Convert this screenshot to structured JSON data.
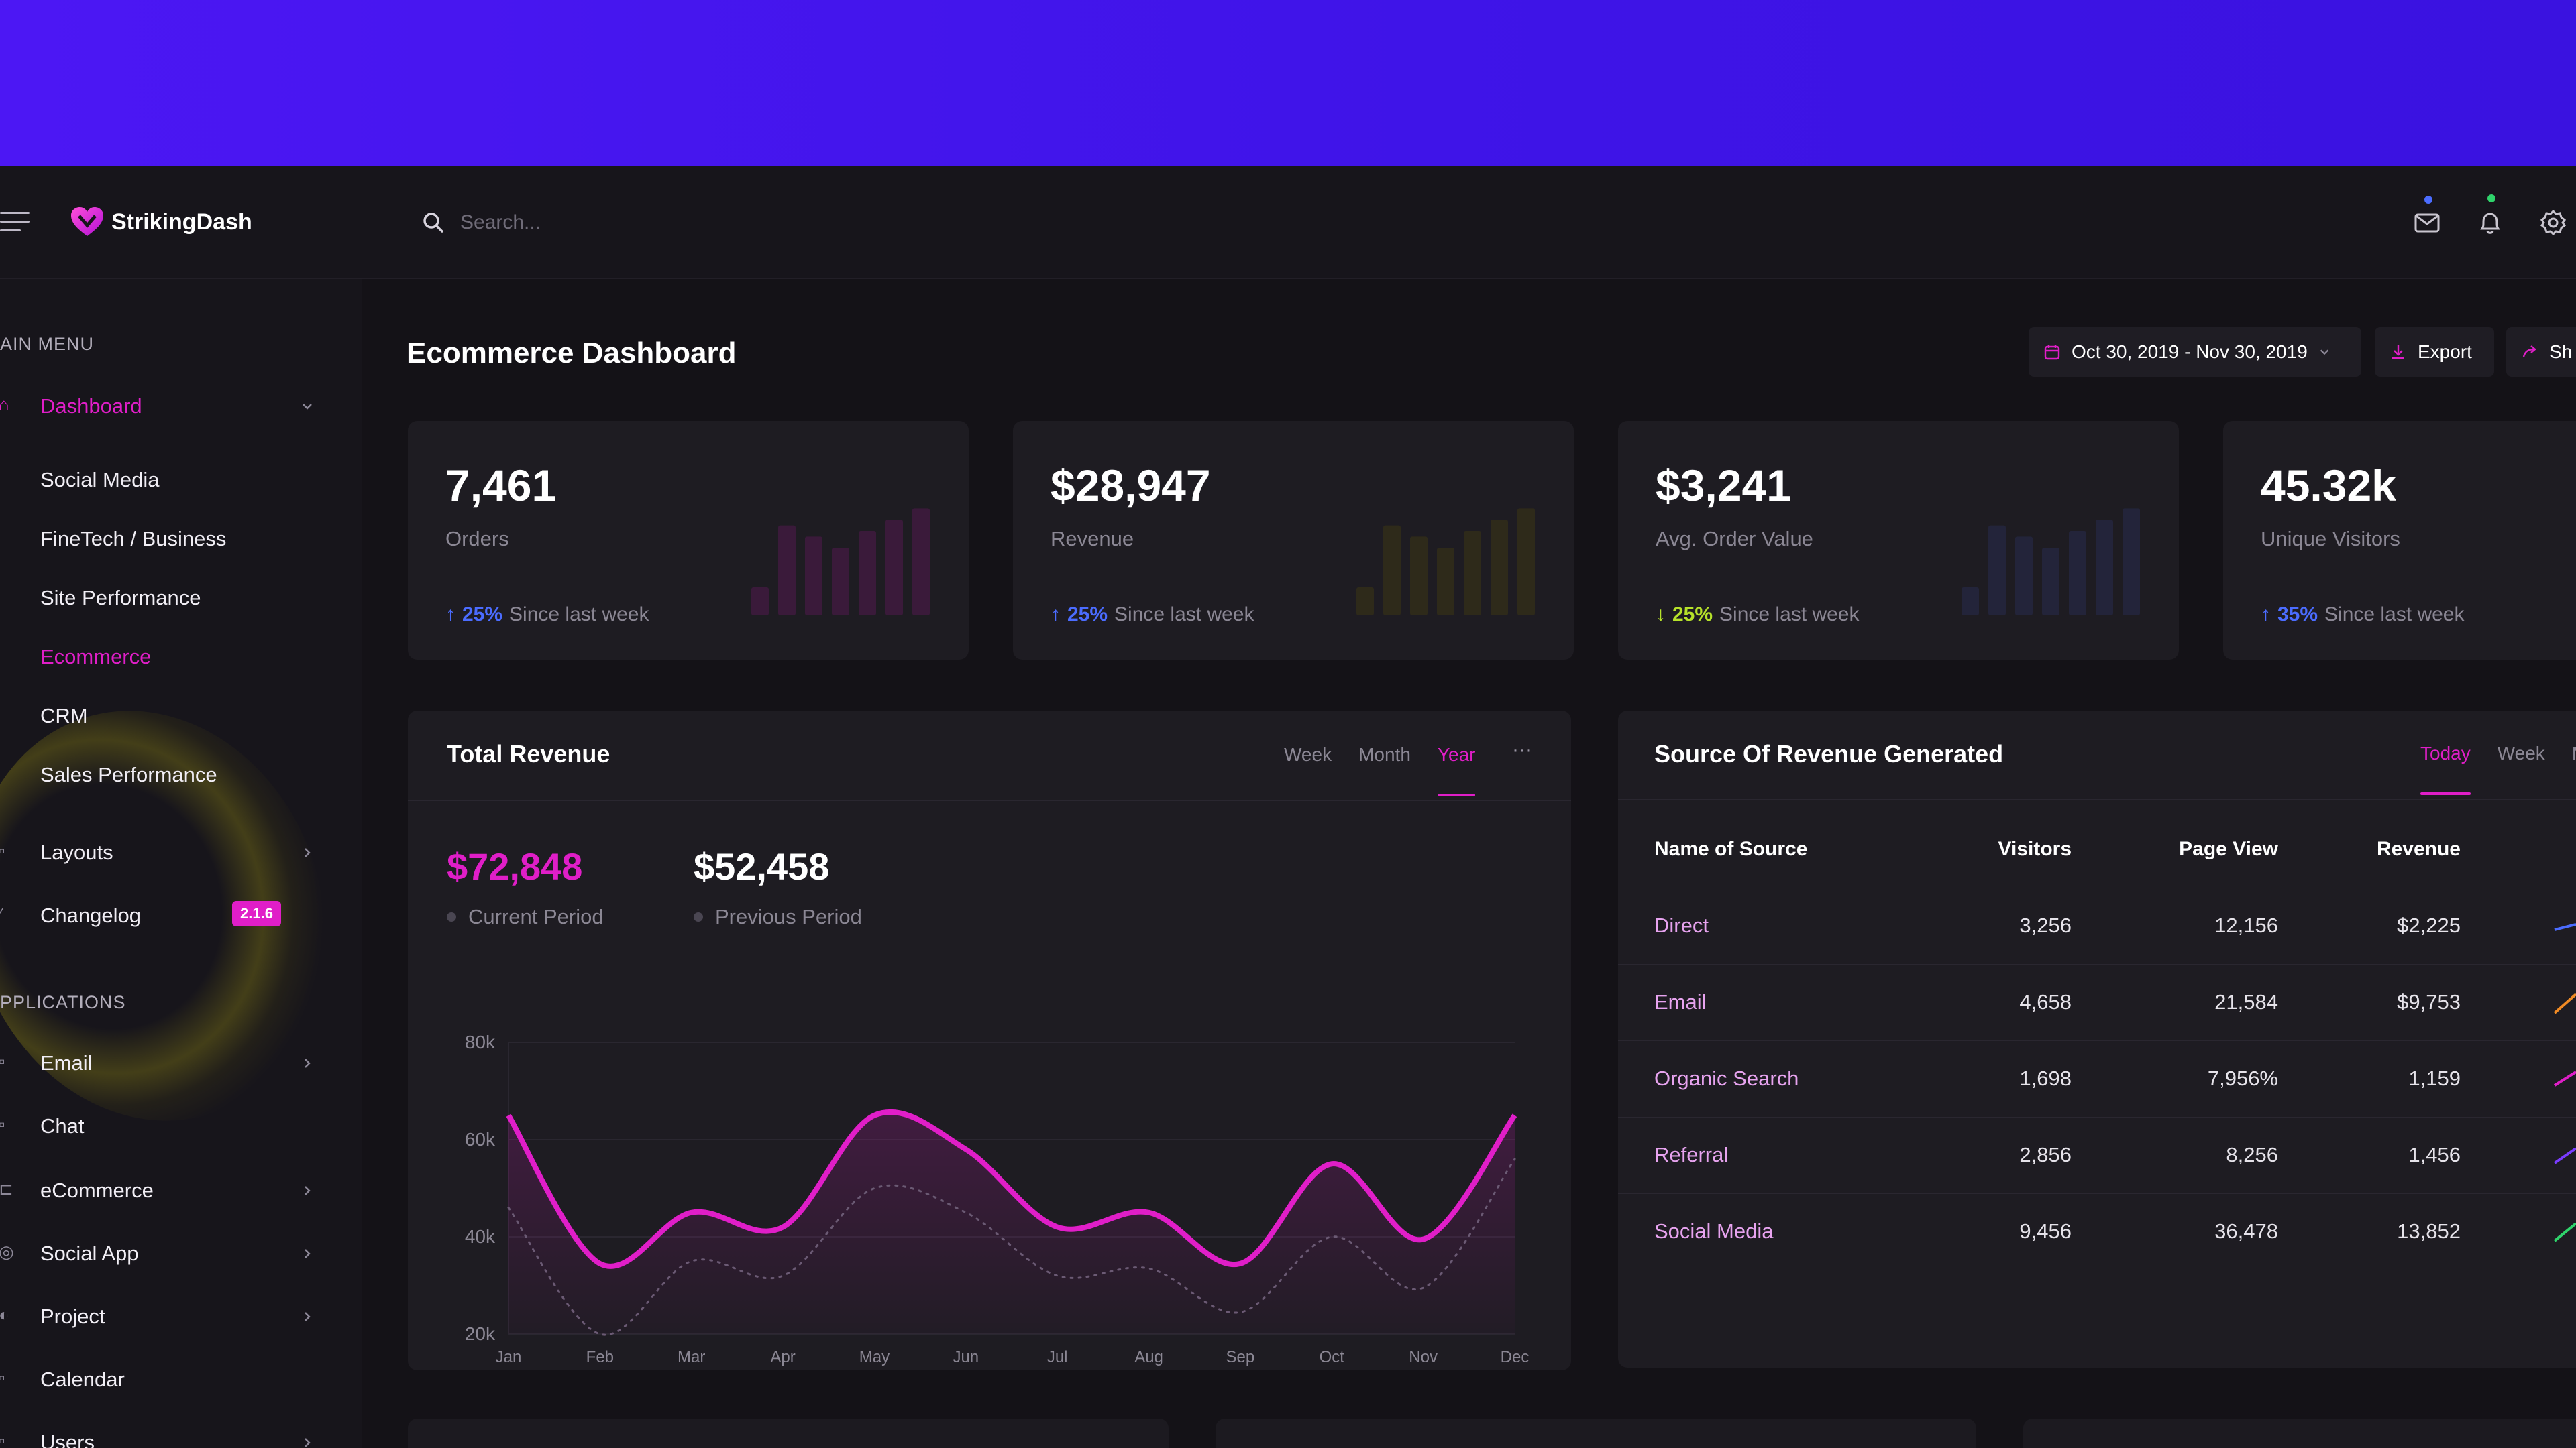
{
  "app": {
    "name": "StrikingDash"
  },
  "search": {
    "placeholder": "Search..."
  },
  "sidebar": {
    "main_menu_title": "AIN MENU",
    "dashboard_label": "Dashboard",
    "dashboard_items": [
      {
        "label": "Social Media"
      },
      {
        "label": "FineTech / Business"
      },
      {
        "label": "Site Performance"
      },
      {
        "label": "Ecommerce",
        "active": true
      },
      {
        "label": "CRM"
      },
      {
        "label": "Sales Performance"
      }
    ],
    "layouts_label": "Layouts",
    "changelog_label": "Changelog",
    "changelog_badge": "2.1.6",
    "applications_title": "PPLICATIONS",
    "apps": [
      {
        "label": "Email"
      },
      {
        "label": "Chat"
      },
      {
        "label": "eCommerce"
      },
      {
        "label": "Social App"
      },
      {
        "label": "Project"
      },
      {
        "label": "Calendar"
      },
      {
        "label": "Users"
      }
    ]
  },
  "header": {
    "title": "Ecommerce Dashboard",
    "date_range": "Oct 30, 2019 - Nov 30, 2019",
    "export_label": "Export",
    "share_label": "Sh"
  },
  "stats": [
    {
      "value": "7,461",
      "label": "Orders",
      "pct": "25%",
      "since": "Since last week",
      "dir": "up",
      "pct_color": "#4b6cff",
      "bar_color": "#3a1a3a",
      "bars": [
        0.25,
        0.8,
        0.7,
        0.6,
        0.75,
        0.85,
        0.95
      ]
    },
    {
      "value": "$28,947",
      "label": "Revenue",
      "pct": "25%",
      "since": "Since last week",
      "dir": "up",
      "pct_color": "#4b6cff",
      "bar_color": "#2e2a1a",
      "bars": [
        0.25,
        0.8,
        0.7,
        0.6,
        0.75,
        0.85,
        0.95
      ]
    },
    {
      "value": "$3,241",
      "label": "Avg. Order Value",
      "pct": "25%",
      "since": "Since last week",
      "dir": "down",
      "pct_color": "#b6e22a",
      "bar_color": "#23243a",
      "bars": [
        0.25,
        0.8,
        0.7,
        0.6,
        0.75,
        0.85,
        0.95
      ]
    },
    {
      "value": "45.32k",
      "label": "Unique Visitors",
      "pct": "35%",
      "since": "Since last week",
      "dir": "up",
      "pct_color": "#4b6cff",
      "bar_color": "#23243a",
      "bars": []
    }
  ],
  "total_revenue": {
    "title": "Total Revenue",
    "tabs": [
      "Week",
      "Month",
      "Year"
    ],
    "active_tab": "Year",
    "more": "···",
    "current_value": "$72,848",
    "current_label": "Current Period",
    "previous_value": "$52,458",
    "previous_label": "Previous Period"
  },
  "chart_data": {
    "type": "line",
    "x": [
      "Jan",
      "Feb",
      "Mar",
      "Apr",
      "May",
      "Jun",
      "Jul",
      "Aug",
      "Sep",
      "Oct",
      "Nov",
      "Dec"
    ],
    "y_ticks": [
      "80k",
      "60k",
      "40k",
      "20k"
    ],
    "ylim": [
      20000,
      80000
    ],
    "series": [
      {
        "values": [
          65000,
          34500,
          45000,
          42000,
          65000,
          58000,
          42000,
          45000,
          34500,
          55000,
          39500,
          65000
        ],
        "color": "#e01ec8",
        "style": "solid"
      },
      {
        "values": [
          46000,
          20000,
          35000,
          32000,
          50000,
          45000,
          32000,
          33500,
          24500,
          40000,
          29500,
          56000
        ],
        "color": "#6b5a74",
        "style": "dotted"
      }
    ]
  },
  "source_revenue": {
    "title": "Source Of Revenue Generated",
    "tabs": [
      "Today",
      "Week",
      "M"
    ],
    "active_tab": "Today",
    "columns": [
      "Name of Source",
      "Visitors",
      "Page View",
      "Revenue"
    ],
    "rows": [
      {
        "name": "Direct",
        "visitors": "3,256",
        "page_view": "12,156",
        "revenue": "$2,225",
        "spark": "#4b6cff"
      },
      {
        "name": "Email",
        "visitors": "4,658",
        "page_view": "21,584",
        "revenue": "$9,753",
        "spark": "#f08a24"
      },
      {
        "name": "Organic Search",
        "visitors": "1,698",
        "page_view": "7,956%",
        "revenue": "1,159",
        "spark": "#e01ec8"
      },
      {
        "name": "Referral",
        "visitors": "2,856",
        "page_view": "8,256",
        "revenue": "1,456",
        "spark": "#7a3cff"
      },
      {
        "name": "Social Media",
        "visitors": "9,456",
        "page_view": "36,478",
        "revenue": "13,852",
        "spark": "#2fd36b"
      }
    ]
  }
}
